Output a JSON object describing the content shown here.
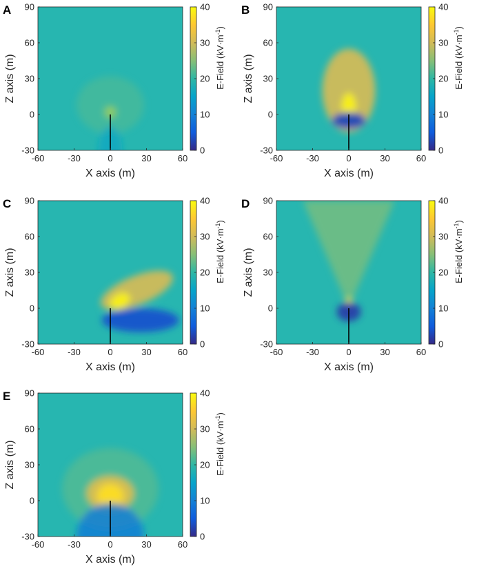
{
  "colormap": {
    "name": "parula",
    "stops": [
      "#352a87",
      "#0f5cdd",
      "#1481d6",
      "#06a4ca",
      "#2eb7a4",
      "#87bf77",
      "#d1bb59",
      "#fec832",
      "#f9fb0e"
    ],
    "background_20": "#27b6b0"
  },
  "chart_data": [
    {
      "panel": "A",
      "type": "heatmap",
      "xlabel": "X axis (m)",
      "ylabel": "Z axis (m)",
      "xlim": [
        -60,
        60
      ],
      "ylim": [
        -30,
        90
      ],
      "xticks": [
        "-60",
        "-30",
        "0",
        "30",
        "60"
      ],
      "yticks": [
        "-30",
        "0",
        "30",
        "60",
        "90"
      ],
      "colorbar": {
        "label": "E-Field (kV·m",
        "label_sup": "-1",
        "label_end": ")",
        "range": [
          0,
          40
        ],
        "ticks": [
          "0",
          "10",
          "20",
          "30",
          "40"
        ]
      },
      "rod": {
        "x": 0,
        "z_bottom": -30,
        "z_top": 0
      },
      "features": [
        {
          "kind": "hotspot",
          "x": 0,
          "z": 2,
          "rx": 5,
          "rz": 5,
          "value": 38
        },
        {
          "kind": "halo",
          "x": 0,
          "z": 8,
          "rx": 28,
          "rz": 24,
          "value": 22
        },
        {
          "kind": "lowfan",
          "x": 0,
          "z": -30,
          "rx": 10,
          "rz": 20,
          "value": 16
        }
      ]
    },
    {
      "panel": "B",
      "type": "heatmap",
      "xlabel": "X axis (m)",
      "ylabel": "Z axis (m)",
      "xlim": [
        -60,
        60
      ],
      "ylim": [
        -30,
        90
      ],
      "xticks": [
        "-60",
        "-30",
        "0",
        "30",
        "60"
      ],
      "yticks": [
        "-30",
        "0",
        "30",
        "60",
        "90"
      ],
      "colorbar": {
        "label": "E-Field (kV·m",
        "label_sup": "-1",
        "label_end": ")",
        "range": [
          0,
          40
        ],
        "ticks": [
          "0",
          "10",
          "20",
          "30",
          "40"
        ]
      },
      "rod": {
        "x": 0,
        "z_bottom": -30,
        "z_top": 0
      },
      "features": [
        {
          "kind": "plume",
          "x": 0,
          "z": 20,
          "rx": 22,
          "rz": 35,
          "value": 30
        },
        {
          "kind": "hotspot",
          "x": 0,
          "z": 6,
          "rx": 6,
          "rz": 12,
          "value": 39
        },
        {
          "kind": "lowpool",
          "x": 0,
          "z": -5,
          "rx": 14,
          "rz": 7,
          "value": 3
        }
      ]
    },
    {
      "panel": "C",
      "type": "heatmap",
      "xlabel": "X axis (m)",
      "ylabel": "Z axis (m)",
      "xlim": [
        -60,
        60
      ],
      "ylim": [
        -30,
        90
      ],
      "xticks": [
        "-60",
        "-30",
        "0",
        "30",
        "60"
      ],
      "yticks": [
        "-30",
        "0",
        "30",
        "60",
        "90"
      ],
      "colorbar": {
        "label": "E-Field (kV·m",
        "label_sup": "-1",
        "label_end": ")",
        "range": [
          0,
          40
        ],
        "ticks": [
          "0",
          "10",
          "20",
          "30",
          "40"
        ]
      },
      "rod": {
        "x": 0,
        "z_bottom": -30,
        "z_top": 0
      },
      "features": [
        {
          "kind": "plume",
          "x": 22,
          "z": 15,
          "rx": 32,
          "rz": 12,
          "value": 30,
          "angle": -22
        },
        {
          "kind": "hotspot",
          "x": 8,
          "z": 6,
          "rx": 9,
          "rz": 6,
          "value": 39,
          "angle": -30
        },
        {
          "kind": "lowpool",
          "x": 25,
          "z": -10,
          "rx": 32,
          "rz": 10,
          "value": 4
        }
      ]
    },
    {
      "panel": "D",
      "type": "heatmap",
      "xlabel": "X axis (m)",
      "ylabel": "Z axis (m)",
      "xlim": [
        -60,
        60
      ],
      "ylim": [
        -30,
        90
      ],
      "xticks": [
        "-60",
        "-30",
        "0",
        "30",
        "60"
      ],
      "yticks": [
        "-30",
        "0",
        "30",
        "60",
        "90"
      ],
      "colorbar": {
        "label": "E-Field (kV·m",
        "label_sup": "-1",
        "label_end": ")",
        "range": [
          0,
          40
        ],
        "ticks": [
          "0",
          "10",
          "20",
          "30",
          "40"
        ]
      },
      "rod": {
        "x": 0,
        "z_bottom": -30,
        "z_top": 0
      },
      "features": [
        {
          "kind": "cone",
          "x": 0,
          "z": 0,
          "half_width_top": 38,
          "value": 24
        },
        {
          "kind": "hotspot",
          "x": 0,
          "z": 3,
          "rx": 3,
          "rz": 6,
          "value": 38
        },
        {
          "kind": "lowpool",
          "x": 0,
          "z": -3,
          "rx": 10,
          "rz": 8,
          "value": 2
        }
      ]
    },
    {
      "panel": "E",
      "type": "heatmap",
      "xlabel": "X axis (m)",
      "ylabel": "Z axis (m)",
      "xlim": [
        -60,
        60
      ],
      "ylim": [
        -30,
        90
      ],
      "xticks": [
        "-60",
        "-30",
        "0",
        "30",
        "60"
      ],
      "yticks": [
        "-30",
        "0",
        "30",
        "60",
        "90"
      ],
      "colorbar": {
        "label": "E-Field (kV·m",
        "label_sup": "-1",
        "label_end": ")",
        "range": [
          0,
          40
        ],
        "ticks": [
          "0",
          "10",
          "20",
          "30",
          "40"
        ]
      },
      "rod": {
        "x": 0,
        "z_bottom": -30,
        "z_top": 0
      },
      "features": [
        {
          "kind": "halo",
          "x": 0,
          "z": 10,
          "rx": 40,
          "rz": 34,
          "value": 23
        },
        {
          "kind": "plume",
          "x": 0,
          "z": 6,
          "rx": 20,
          "rz": 15,
          "value": 31
        },
        {
          "kind": "hotspot",
          "x": 0,
          "z": 4,
          "rx": 11,
          "rz": 10,
          "value": 37
        },
        {
          "kind": "lowfan",
          "x": 0,
          "z": -30,
          "rx": 28,
          "rz": 28,
          "value": 9
        }
      ]
    }
  ]
}
